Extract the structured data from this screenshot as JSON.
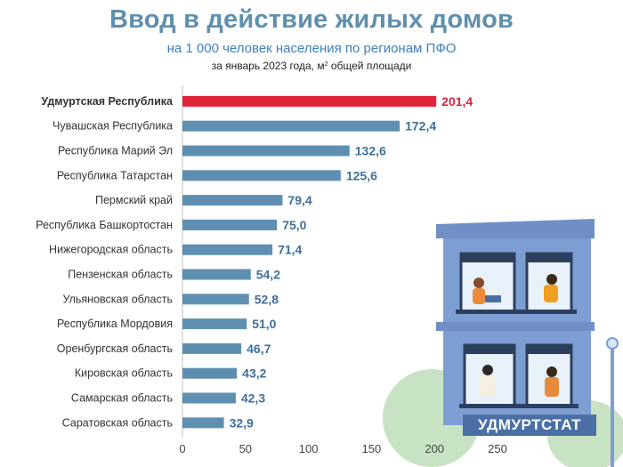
{
  "header": {
    "title": "Ввод в действие жилых домов",
    "subtitle": "на 1 000 человек населения по регионам ПФО",
    "note_text": "за январь 2023 года, м",
    "note_sup": "2",
    "note_tail": " общей площади"
  },
  "brand": "УДМУРТСТАТ",
  "colors": {
    "highlight": "#e0243c",
    "bar": "#5f8fb0",
    "value": "#3f6f9a",
    "title": "#5f8fae"
  },
  "chart_data": {
    "type": "bar",
    "orientation": "horizontal",
    "title": "Ввод в действие жилых домов",
    "categories": [
      "Удмуртская Республика",
      "Чувашская Республика",
      "Республика  Марий Эл",
      "Республика Татарстан",
      "Пермский край",
      "Республика Башкортостан",
      "Нижегородская область",
      "Пензенская область",
      "Ульяновская область",
      "Республика Мордовия",
      "Оренбургская область",
      "Кировская область",
      "Самарская область",
      "Саратовская область"
    ],
    "values": [
      201.4,
      172.4,
      132.6,
      125.6,
      79.4,
      75.0,
      71.4,
      54.2,
      52.8,
      51.0,
      46.7,
      43.2,
      42.3,
      32.9
    ],
    "value_labels": [
      "201,4",
      "172,4",
      "132,6",
      "125,6",
      "79,4",
      "75,0",
      "71,4",
      "54,2",
      "52,8",
      "51,0",
      "46,7",
      "43,2",
      "42,3",
      "32,9"
    ],
    "highlight_index": 0,
    "xlim": [
      0,
      250
    ],
    "xticks": [
      0,
      50,
      100,
      150,
      200,
      250
    ],
    "grid": false
  }
}
